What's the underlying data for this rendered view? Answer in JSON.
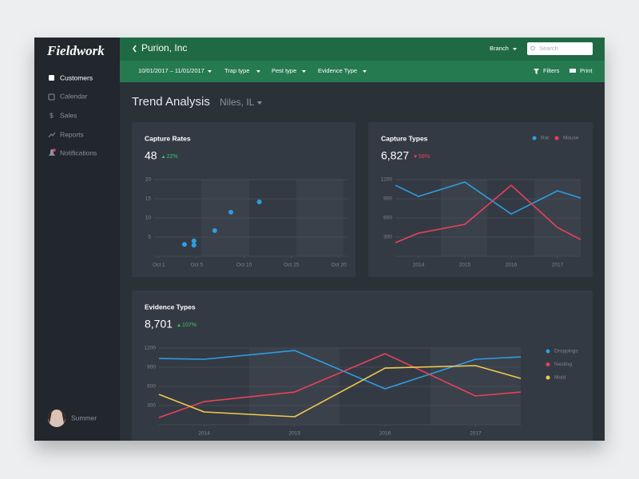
{
  "sidebar": {
    "logo": "Fieldwork",
    "menu": [
      "Customers",
      "Calendar",
      "Sales",
      "Reports",
      "Notifications"
    ],
    "user": "Summer"
  },
  "header": {
    "title": "Purion, Inc",
    "branch": "Branch",
    "search_placeholder": "Search"
  },
  "filters": {
    "items": [
      "10/01/2017 – 11/01/2017",
      "Trap type",
      "Pest type",
      "Evidence Type"
    ],
    "actions": [
      "Filters",
      "Print"
    ]
  },
  "page": {
    "title": "Trend Analysis",
    "location": "Niles, IL"
  },
  "chart_data": [
    {
      "type": "scatter",
      "title": "Capture Rates",
      "total": "48",
      "change": "22%",
      "change_trend": "up",
      "change_color": "#3cc46b",
      "color": "#2d9ee0",
      "x": [
        3.7,
        4.7,
        4.7,
        6.9,
        8.6,
        11.6
      ],
      "values": [
        3.1,
        4,
        2.9,
        6.7,
        11.5,
        14.2
      ],
      "xlim": [
        0.5,
        21
      ],
      "xticks": [
        {
          "value": 1,
          "label": "Oct 1"
        },
        {
          "value": 5,
          "label": "Oct 5"
        },
        {
          "value": 10,
          "label": "Oct 10"
        },
        {
          "value": 15,
          "label": "Oct 15"
        },
        {
          "value": 20,
          "label": "Oct 20"
        }
      ],
      "ylim": [
        0,
        20
      ],
      "yticks": [
        5,
        10,
        15,
        20
      ],
      "grid": true
    },
    {
      "type": "line",
      "title": "Capture Types",
      "total": "6,827",
      "change": "58%",
      "change_trend": "down",
      "change_color": "#e8415a",
      "legend": "top-right",
      "x": [
        2013.5,
        2014,
        2015,
        2016,
        2017,
        2017.5
      ],
      "series": [
        {
          "name": "Rat",
          "color": "#2d9ee0",
          "values": [
            1112,
            937,
            1162,
            662,
            1025,
            912
          ]
        },
        {
          "name": "Mouse",
          "color": "#e8415a",
          "values": [
            212,
            362,
            500,
            1112,
            450,
            262
          ]
        }
      ],
      "xlim": [
        2013.5,
        2017.5
      ],
      "xticks": [
        2014,
        2015,
        2016,
        2017
      ],
      "ylim": [
        0,
        1200
      ],
      "yticks": [
        300,
        600,
        900,
        1200
      ],
      "grid": true
    },
    {
      "type": "line",
      "title": "Evidence Types",
      "total": "8,701",
      "change": "107%",
      "change_trend": "up",
      "change_color": "#3cc46b",
      "legend": "right",
      "x": [
        2013.5,
        2014,
        2015,
        2016,
        2017,
        2017.5
      ],
      "series": [
        {
          "name": "Droppings",
          "color": "#2d9ee0",
          "values": [
            1037,
            1025,
            1162,
            562,
            1025,
            1062
          ]
        },
        {
          "name": "Nesting",
          "color": "#e8415a",
          "values": [
            112,
            362,
            512,
            1112,
            450,
            512
          ]
        },
        {
          "name": "Mold",
          "color": "#f2c94c",
          "values": [
            475,
            200,
            125,
            887,
            925,
            725
          ]
        }
      ],
      "xlim": [
        2013.5,
        2017.5
      ],
      "xticks": [
        2014,
        2015,
        2016,
        2017
      ],
      "ylim": [
        0,
        1200
      ],
      "yticks": [
        300,
        600,
        900,
        1200
      ],
      "grid": true
    }
  ]
}
